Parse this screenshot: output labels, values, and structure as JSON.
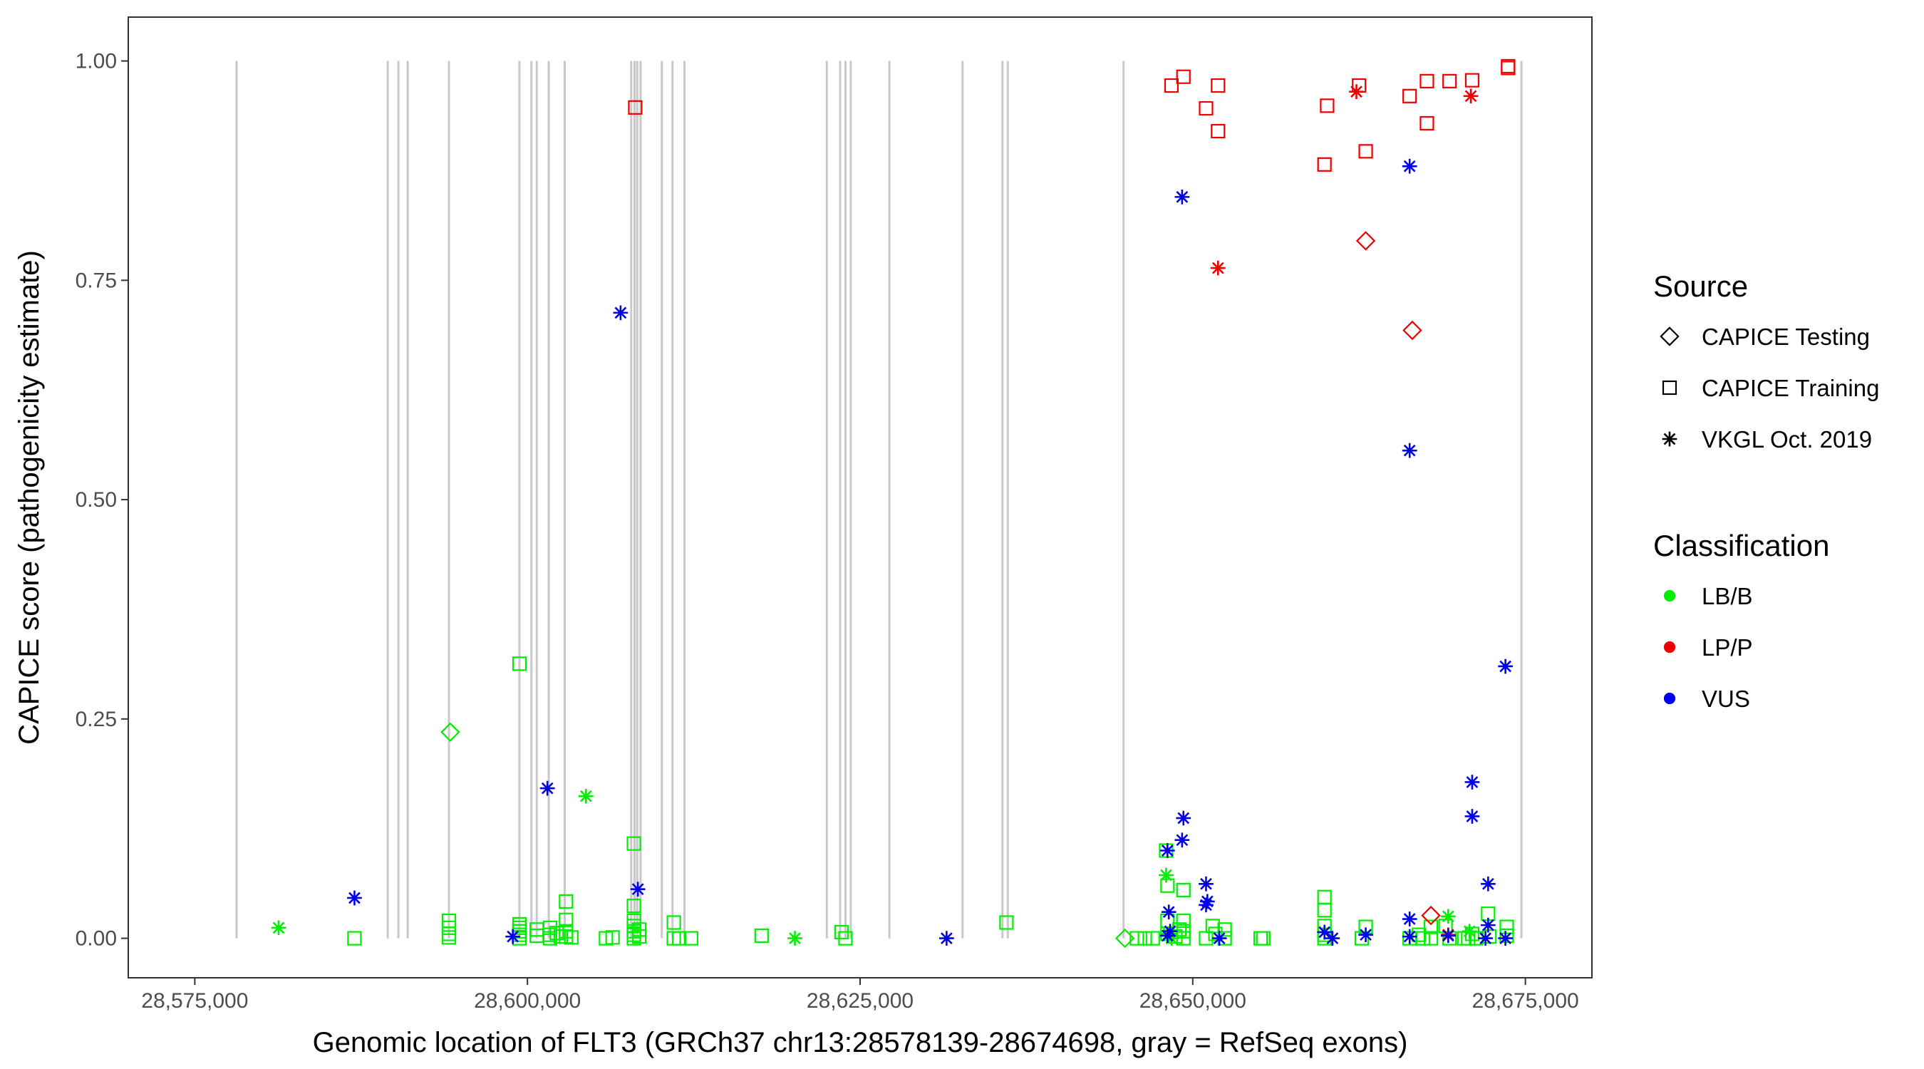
{
  "chart_data": {
    "type": "scatter",
    "xlabel": "Genomic location of FLT3 (GRCh37 chr13:28578139-28674698, gray = RefSeq exons)",
    "ylabel": "CAPICE score (pathogenicity estimate)",
    "xlim": [
      28570000,
      28680000
    ],
    "ylim": [
      -0.045,
      1.05
    ],
    "x_ticks": [
      28575000,
      28600000,
      28625000,
      28650000,
      28675000
    ],
    "x_tick_labels": [
      "28,575,000",
      "28,600,000",
      "28,625,000",
      "28,650,000",
      "28,675,000"
    ],
    "y_ticks": [
      0,
      0.25,
      0.5,
      0.75,
      1.0
    ],
    "y_tick_labels": [
      "0.00",
      "0.25",
      "0.50",
      "0.75",
      "1.00"
    ],
    "grid": false,
    "exon_color": "#c8c8c8",
    "exons": [
      28578139,
      28589500,
      28590300,
      28591000,
      28594100,
      28599400,
      28600300,
      28600700,
      28601600,
      28602800,
      28607800,
      28608050,
      28608250,
      28608500,
      28610100,
      28610900,
      28611800,
      28622500,
      28623500,
      28623900,
      28624300,
      28627200,
      28632700,
      28635700,
      28636100,
      28644800,
      28674698
    ],
    "legend": {
      "source": {
        "title": "Source",
        "items": [
          {
            "label": "CAPICE Testing",
            "shape": "diamond"
          },
          {
            "label": "CAPICE Training",
            "shape": "square"
          },
          {
            "label": "VKGL Oct. 2019",
            "shape": "asterisk"
          }
        ]
      },
      "classification": {
        "title": "Classification",
        "items": [
          {
            "label": "LB/B",
            "color": "#00ee00"
          },
          {
            "label": "LP/P",
            "color": "#ee0000"
          },
          {
            "label": "VUS",
            "color": "#0000ee"
          }
        ]
      }
    },
    "series": [
      {
        "name": "LB/B - CAPICE Testing",
        "source": "CAPICE Testing",
        "classification": "LB/B",
        "points": [
          [
            28594200,
            0.235
          ],
          [
            28644900,
            0.0
          ]
        ]
      },
      {
        "name": "LB/B - CAPICE Training",
        "source": "CAPICE Training",
        "classification": "LB/B",
        "points": [
          [
            28587000,
            0.0
          ],
          [
            28594100,
            0.02
          ],
          [
            28594100,
            0.012
          ],
          [
            28594100,
            0.005
          ],
          [
            28594100,
            0.001
          ],
          [
            28599400,
            0.313
          ],
          [
            28599400,
            0.016
          ],
          [
            28599400,
            0.012
          ],
          [
            28599400,
            0.008
          ],
          [
            28599400,
            0.004
          ],
          [
            28599400,
            0.0
          ],
          [
            28600700,
            0.01
          ],
          [
            28600700,
            0.003
          ],
          [
            28601700,
            0.012
          ],
          [
            28601700,
            0.004
          ],
          [
            28601700,
            0.0
          ],
          [
            28602200,
            0.006
          ],
          [
            28602500,
            0.002
          ],
          [
            28602900,
            0.042
          ],
          [
            28602900,
            0.021
          ],
          [
            28602900,
            0.008
          ],
          [
            28602900,
            0.002
          ],
          [
            28603300,
            0.001
          ],
          [
            28605900,
            0.0
          ],
          [
            28606400,
            0.001
          ],
          [
            28608000,
            0.108
          ],
          [
            28608000,
            0.037
          ],
          [
            28608000,
            0.02
          ],
          [
            28608000,
            0.014
          ],
          [
            28608000,
            0.008
          ],
          [
            28608000,
            0.004
          ],
          [
            28608000,
            0.0
          ],
          [
            28608400,
            0.01
          ],
          [
            28608400,
            0.002
          ],
          [
            28611000,
            0.018
          ],
          [
            28611000,
            0.0
          ],
          [
            28611400,
            0.0
          ],
          [
            28612300,
            0.0
          ],
          [
            28617600,
            0.003
          ],
          [
            28623600,
            0.007
          ],
          [
            28623900,
            0.0
          ],
          [
            28636000,
            0.018
          ],
          [
            28645800,
            0.0
          ],
          [
            28646400,
            0.0
          ],
          [
            28647000,
            0.0
          ],
          [
            28648000,
            0.1
          ],
          [
            28648100,
            0.06
          ],
          [
            28648100,
            0.02
          ],
          [
            28648100,
            0.005
          ],
          [
            28648700,
            0.002
          ],
          [
            28649000,
            0.01
          ],
          [
            28649300,
            0.055
          ],
          [
            28649300,
            0.02
          ],
          [
            28649300,
            0.008
          ],
          [
            28649300,
            0.0
          ],
          [
            28651000,
            0.0
          ],
          [
            28651500,
            0.014
          ],
          [
            28651700,
            0.005
          ],
          [
            28652400,
            0.01
          ],
          [
            28652400,
            0.0
          ],
          [
            28655100,
            0.0
          ],
          [
            28655300,
            0.0
          ],
          [
            28659900,
            0.047
          ],
          [
            28659900,
            0.032
          ],
          [
            28659900,
            0.014
          ],
          [
            28659900,
            0.004
          ],
          [
            28659900,
            0.0
          ],
          [
            28662700,
            0.0
          ],
          [
            28663000,
            0.013
          ],
          [
            28666300,
            0.0
          ],
          [
            28667000,
            0.004
          ],
          [
            28667300,
            0.0
          ],
          [
            28667900,
            0.013
          ],
          [
            28667900,
            0.0
          ],
          [
            28669000,
            0.014
          ],
          [
            28669300,
            0.0
          ],
          [
            28670400,
            0.0
          ],
          [
            28670700,
            0.0
          ],
          [
            28671000,
            0.005
          ],
          [
            28671300,
            0.0
          ],
          [
            28672200,
            0.028
          ],
          [
            28672300,
            0.002
          ],
          [
            28673600,
            0.013
          ],
          [
            28673600,
            0.003
          ]
        ]
      },
      {
        "name": "LB/B - VKGL Oct. 2019",
        "source": "VKGL Oct. 2019",
        "classification": "LB/B",
        "points": [
          [
            28581300,
            0.012
          ],
          [
            28604400,
            0.162
          ],
          [
            28620100,
            0.0
          ],
          [
            28648000,
            0.072
          ],
          [
            28648200,
            0.005
          ],
          [
            28648400,
            0.0
          ],
          [
            28669200,
            0.025
          ],
          [
            28670800,
            0.008
          ]
        ]
      },
      {
        "name": "LP/P - CAPICE Testing",
        "source": "CAPICE Testing",
        "classification": "LP/P",
        "points": [
          [
            28663000,
            0.795
          ],
          [
            28666500,
            0.693
          ],
          [
            28667900,
            0.026
          ]
        ]
      },
      {
        "name": "LP/P - CAPICE Training",
        "source": "CAPICE Training",
        "classification": "LP/P",
        "points": [
          [
            28608100,
            0.947
          ],
          [
            28648400,
            0.972
          ],
          [
            28649300,
            0.982
          ],
          [
            28651000,
            0.946
          ],
          [
            28651900,
            0.972
          ],
          [
            28651900,
            0.92
          ],
          [
            28660100,
            0.949
          ],
          [
            28659900,
            0.882
          ],
          [
            28662500,
            0.972
          ],
          [
            28663000,
            0.897
          ],
          [
            28666300,
            0.96
          ],
          [
            28667600,
            0.977
          ],
          [
            28667600,
            0.929
          ],
          [
            28669300,
            0.977
          ],
          [
            28671000,
            0.978
          ],
          [
            28673700,
            0.994
          ],
          [
            28673700,
            0.992
          ]
        ]
      },
      {
        "name": "LP/P - VKGL Oct. 2019",
        "source": "VKGL Oct. 2019",
        "classification": "LP/P",
        "points": [
          [
            28651900,
            0.764
          ],
          [
            28662300,
            0.965
          ],
          [
            28670900,
            0.96
          ],
          [
            28669200,
            0.004
          ]
        ]
      },
      {
        "name": "VUS - VKGL Oct. 2019",
        "source": "VKGL Oct. 2019",
        "classification": "VUS",
        "points": [
          [
            28587000,
            0.046
          ],
          [
            28598900,
            0.002
          ],
          [
            28601500,
            0.171
          ],
          [
            28607000,
            0.713
          ],
          [
            28608300,
            0.056
          ],
          [
            28631500,
            0.0
          ],
          [
            28648100,
            0.1
          ],
          [
            28648200,
            0.03
          ],
          [
            28648300,
            0.008
          ],
          [
            28648100,
            0.003
          ],
          [
            28649200,
            0.845
          ],
          [
            28649300,
            0.137
          ],
          [
            28649200,
            0.112
          ],
          [
            28651000,
            0.062
          ],
          [
            28651100,
            0.042
          ],
          [
            28651000,
            0.038
          ],
          [
            28652000,
            0.0
          ],
          [
            28659900,
            0.007
          ],
          [
            28660500,
            0.0
          ],
          [
            28663000,
            0.004
          ],
          [
            28666300,
            0.88
          ],
          [
            28666300,
            0.556
          ],
          [
            28666300,
            0.022
          ],
          [
            28666300,
            0.002
          ],
          [
            28669200,
            0.003
          ],
          [
            28671000,
            0.178
          ],
          [
            28671000,
            0.139
          ],
          [
            28672200,
            0.062
          ],
          [
            28672200,
            0.015
          ],
          [
            28672000,
            0.0
          ],
          [
            28673500,
            0.31
          ],
          [
            28673500,
            0.0
          ]
        ]
      }
    ]
  }
}
